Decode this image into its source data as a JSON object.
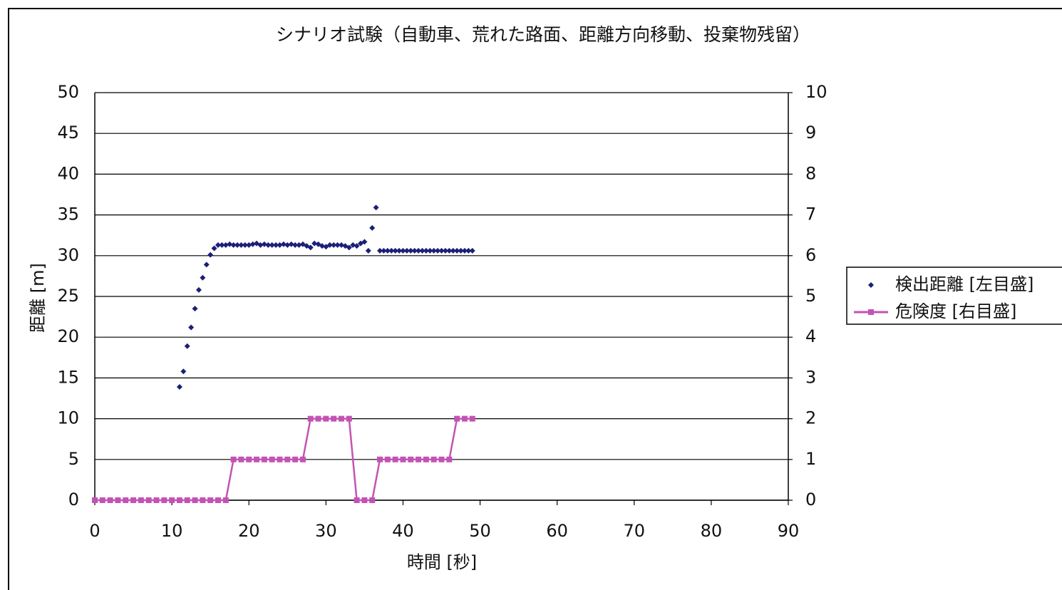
{
  "chart_data": {
    "type": "scatter-line",
    "title": "シナリオ試験（自動車、荒れた路面、距離方向移動、投棄物残留）",
    "xlabel": "時間 [秒]",
    "ylabel": "距離 [m]",
    "xlim": [
      0,
      90
    ],
    "xticks": [
      0,
      10,
      20,
      30,
      40,
      50,
      60,
      70,
      80,
      90
    ],
    "ylim": [
      0,
      50
    ],
    "yticks": [
      0,
      5,
      10,
      15,
      20,
      25,
      30,
      35,
      40,
      45,
      50
    ],
    "y2lim": [
      0,
      10
    ],
    "y2ticks": [
      0,
      1,
      2,
      3,
      4,
      5,
      6,
      7,
      8,
      9,
      10
    ],
    "grid": true,
    "legend": "right",
    "series": [
      {
        "name": "検出距離 [左目盛]",
        "color": "#1c1f78",
        "type": "scatter",
        "x": [
          11,
          11.5,
          12,
          12.5,
          13,
          13.5,
          14,
          14.5,
          15,
          15.5,
          16,
          16.5,
          17,
          17.5,
          18,
          18.5,
          19,
          19.5,
          20,
          20.5,
          21,
          21.5,
          22,
          22.5,
          23,
          23.5,
          24,
          24.5,
          25,
          25.5,
          26,
          26.5,
          27,
          27.5,
          28,
          28.5,
          29,
          29.5,
          30,
          30.5,
          31,
          31.5,
          32,
          32.5,
          33,
          33.5,
          34,
          34.5,
          35,
          35.5,
          36,
          36.5,
          37,
          37.5,
          38,
          38.5,
          39,
          39.5,
          40,
          40.5,
          41,
          41.5,
          42,
          42.5,
          43,
          43.5,
          44,
          44.5,
          45,
          45.5,
          46,
          46.5,
          47,
          47.5,
          48,
          48.5,
          49
        ],
        "values": [
          13.9,
          15.8,
          18.9,
          21.2,
          23.5,
          25.8,
          27.3,
          28.9,
          30.1,
          30.9,
          31.3,
          31.3,
          31.3,
          31.4,
          31.3,
          31.3,
          31.3,
          31.3,
          31.3,
          31.4,
          31.5,
          31.3,
          31.4,
          31.3,
          31.3,
          31.3,
          31.3,
          31.4,
          31.3,
          31.4,
          31.3,
          31.3,
          31.4,
          31.2,
          31.0,
          31.5,
          31.4,
          31.2,
          31.1,
          31.3,
          31.3,
          31.3,
          31.3,
          31.2,
          31.0,
          31.3,
          31.2,
          31.5,
          31.7,
          30.6,
          33.4,
          35.9,
          30.6,
          30.6,
          30.6,
          30.6,
          30.6,
          30.6,
          30.6,
          30.6,
          30.6,
          30.6,
          30.6,
          30.6,
          30.6,
          30.6,
          30.6,
          30.6,
          30.6,
          30.6,
          30.6,
          30.6,
          30.6,
          30.6,
          30.6,
          30.6,
          30.6
        ]
      },
      {
        "name": "危険度 [右目盛]",
        "color": "#c353b3",
        "type": "line",
        "axis": "y2",
        "x": [
          0,
          1,
          2,
          3,
          4,
          5,
          6,
          7,
          8,
          9,
          10,
          11,
          12,
          13,
          14,
          15,
          16,
          17,
          18,
          19,
          20,
          21,
          22,
          23,
          24,
          25,
          26,
          27,
          28,
          29,
          30,
          31,
          32,
          33,
          34,
          35,
          36,
          37,
          38,
          39,
          40,
          41,
          42,
          43,
          44,
          45,
          46,
          47,
          48,
          49
        ],
        "values": [
          0,
          0,
          0,
          0,
          0,
          0,
          0,
          0,
          0,
          0,
          0,
          0,
          0,
          0,
          0,
          0,
          0,
          0,
          1,
          1,
          1,
          1,
          1,
          1,
          1,
          1,
          1,
          1,
          2,
          2,
          2,
          2,
          2,
          2,
          0,
          0,
          0,
          1,
          1,
          1,
          1,
          1,
          1,
          1,
          1,
          1,
          1,
          2,
          2,
          2
        ]
      }
    ]
  }
}
